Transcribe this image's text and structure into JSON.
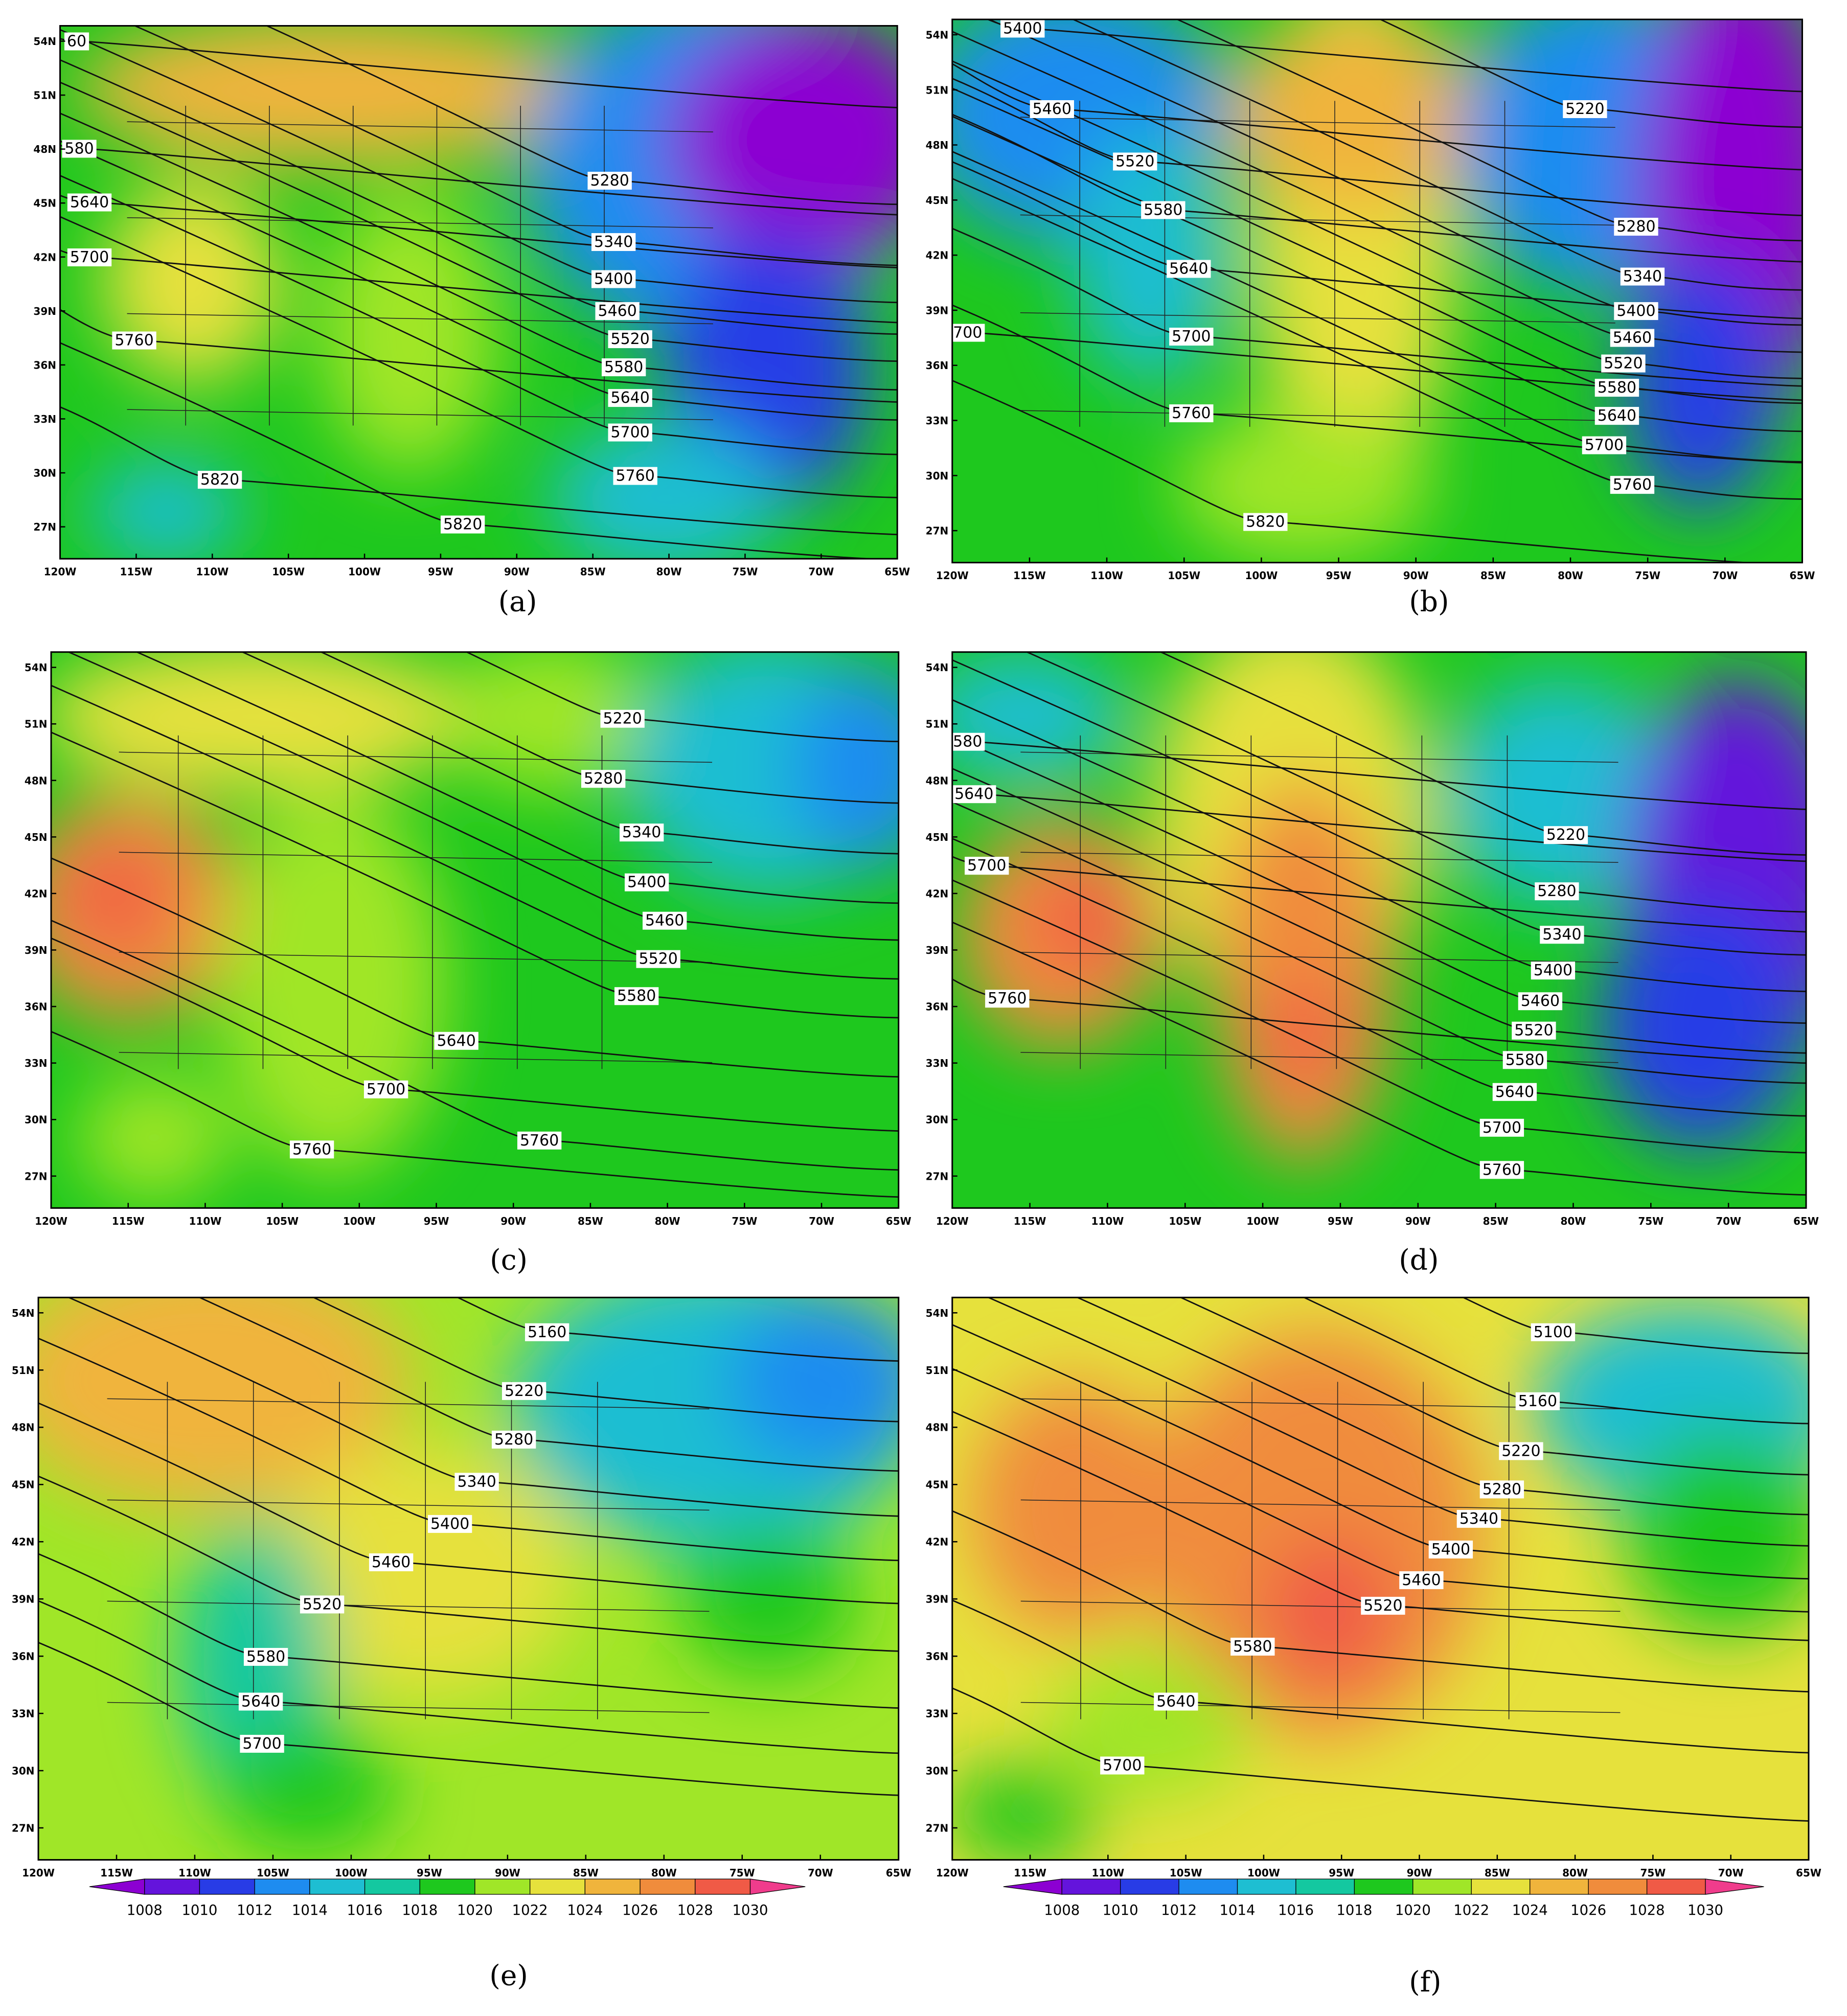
{
  "panels": [
    {
      "caption": "(a)",
      "contour_labels": [
        "60",
        "580",
        "5640",
        "5700",
        "5760",
        "5820",
        "5820",
        "5280",
        "5340",
        "5400",
        "5460",
        "5520",
        "5580",
        "5640",
        "5700",
        "5760"
      ]
    },
    {
      "caption": "(b)",
      "contour_labels": [
        "5400",
        "5460",
        "5520",
        "5580",
        "5640",
        "5700",
        "5760",
        "5820",
        "5220",
        "5280",
        "5340",
        "5400",
        "5460",
        "5520",
        "5580",
        "5640",
        "5700",
        "5760",
        "700"
      ]
    },
    {
      "caption": "(c)",
      "contour_labels": [
        "5220",
        "5280",
        "5340",
        "5400",
        "5460",
        "5520",
        "5580",
        "5640",
        "5700",
        "5760",
        "5760"
      ]
    },
    {
      "caption": "(d)",
      "contour_labels": [
        "580",
        "5640",
        "5700",
        "5760",
        "5220",
        "5280",
        "5340",
        "5400",
        "5460",
        "5520",
        "5580",
        "5640",
        "5700",
        "5760"
      ]
    },
    {
      "caption": "(e)",
      "contour_labels": [
        "5160",
        "5220",
        "5280",
        "5340",
        "5400",
        "5460",
        "5520",
        "5580",
        "5640",
        "5700"
      ]
    },
    {
      "caption": "(f)",
      "contour_labels": [
        "5100",
        "5160",
        "5220",
        "5280",
        "5340",
        "5400",
        "5460",
        "5520",
        "5580",
        "5640",
        "5700"
      ]
    }
  ],
  "lat_ticks": [
    "54N",
    "51N",
    "48N",
    "45N",
    "42N",
    "39N",
    "36N",
    "33N",
    "30N",
    "27N"
  ],
  "lon_ticks": [
    "120W",
    "115W",
    "110W",
    "105W",
    "100W",
    "95W",
    "90W",
    "85W",
    "80W",
    "75W",
    "70W",
    "65W"
  ],
  "colorbar": {
    "labels": [
      "1008",
      "1010",
      "1012",
      "1014",
      "1016",
      "1018",
      "1020",
      "1022",
      "1024",
      "1026",
      "1028",
      "1030"
    ]
  }
}
